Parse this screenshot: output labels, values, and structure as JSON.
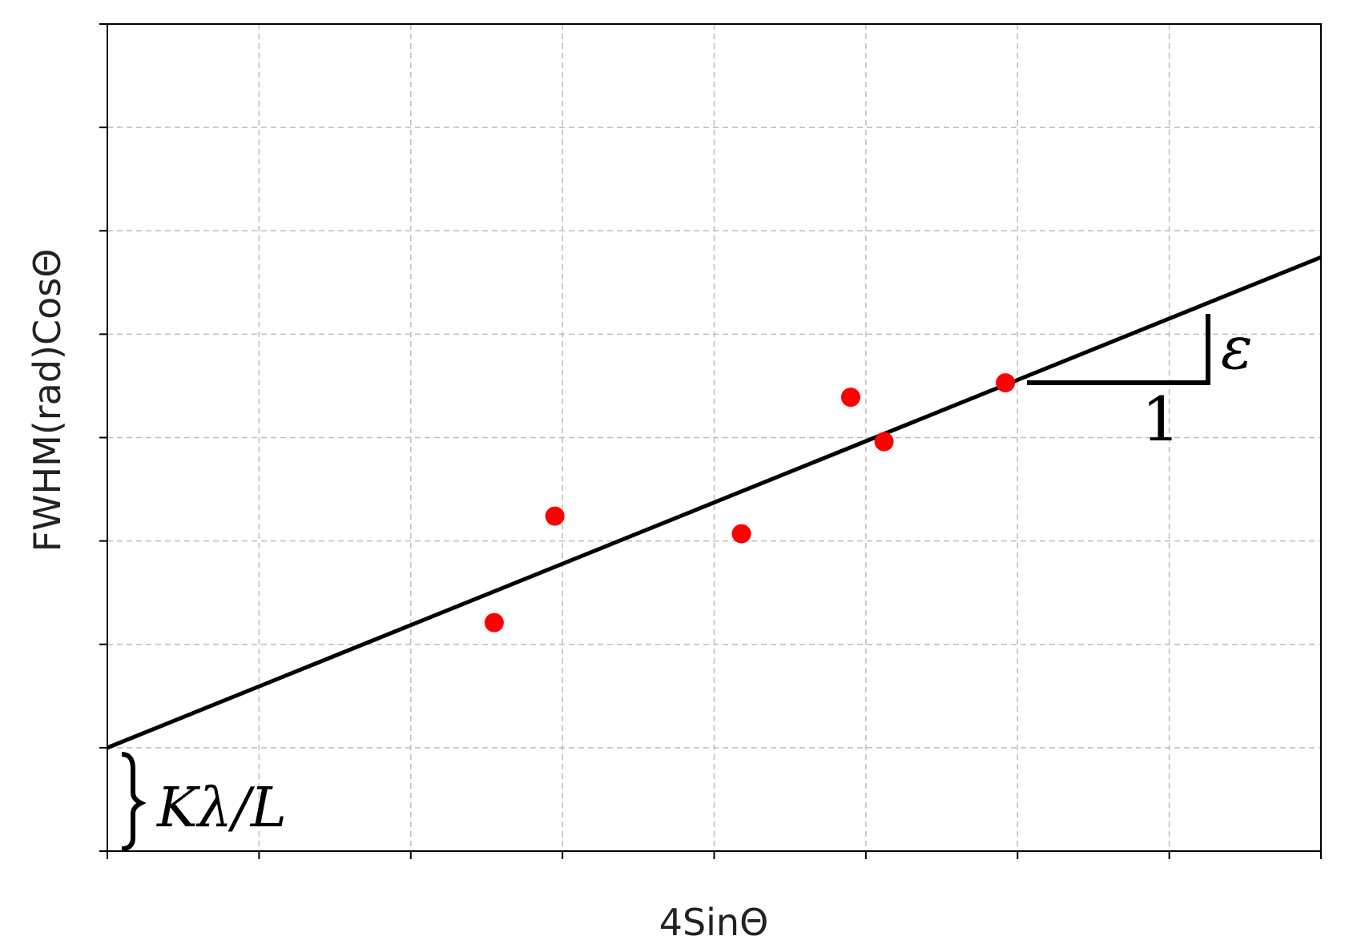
{
  "chart_data": {
    "type": "scatter",
    "xlabel": "4SinΘ",
    "ylabel": "FWHM(rad)CosΘ",
    "xlim": [
      0,
      8
    ],
    "ylim": [
      0,
      8
    ],
    "grid": true,
    "tick_labels_shown": false,
    "series": [
      {
        "kind": "points",
        "color": "#ff0000",
        "points": [
          {
            "x": 2.55,
            "y": 2.21
          },
          {
            "x": 2.95,
            "y": 3.24
          },
          {
            "x": 4.18,
            "y": 3.07
          },
          {
            "x": 4.9,
            "y": 4.39
          },
          {
            "x": 5.12,
            "y": 3.96
          },
          {
            "x": 5.92,
            "y": 4.53
          }
        ]
      },
      {
        "kind": "line",
        "color": "#000000",
        "intercept": 1.0,
        "slope": 0.593
      }
    ],
    "annotations": {
      "slope_label": "ε",
      "run_label": "1",
      "intercept_label": "Kλ/L"
    }
  }
}
